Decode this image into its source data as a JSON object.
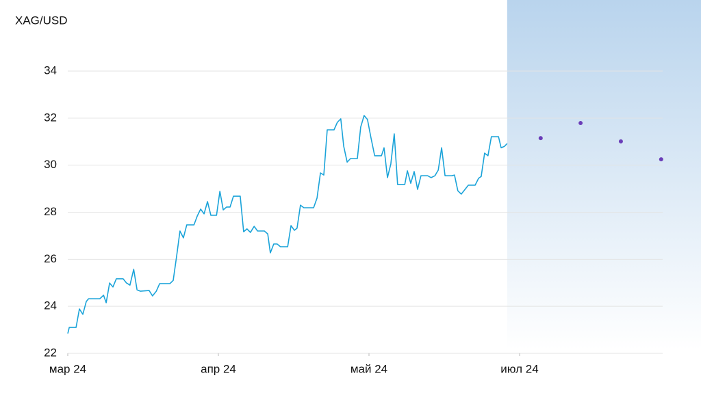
{
  "chart_data": {
    "type": "line",
    "title": "XAG/USD",
    "xlim": [
      0,
      158
    ],
    "xticks": [
      {
        "value": 0,
        "label": "мар 24"
      },
      {
        "value": 40,
        "label": "апр 24"
      },
      {
        "value": 80,
        "label": "май 24"
      },
      {
        "value": 120,
        "label": "июл 24"
      }
    ],
    "ylim": [
      22,
      34
    ],
    "yticks": [
      22,
      24,
      26,
      28,
      30,
      32,
      34
    ],
    "grid": true,
    "series": [
      {
        "color": "#1aa3d9",
        "x": [
          0,
          0.4,
          2.2,
          3.1,
          4.0,
          4.9,
          5.5,
          8.5,
          9.5,
          10.2,
          11.1,
          12.0,
          12.9,
          14.7,
          15.6,
          16.5,
          17.5,
          18.4,
          19.3,
          21.6,
          22.5,
          23.5,
          24.4,
          27.1,
          28.0,
          28.9,
          29.8,
          30.7,
          31.6,
          33.5,
          34.4,
          35.3,
          36.2,
          37.1,
          38.0,
          39.5,
          40.4,
          41.3,
          42.2,
          43.1,
          44.0,
          45.8,
          46.7,
          47.6,
          48.5,
          49.5,
          50.4,
          52.2,
          53.1,
          53.8,
          54.7,
          55.6,
          56.5,
          58.4,
          59.3,
          60.2,
          60.9,
          61.8,
          62.7,
          65.3,
          66.2,
          67.1,
          68.0,
          68.9,
          70.7,
          71.6,
          72.5,
          73.3,
          74.2,
          75.1,
          76.9,
          77.8,
          78.7,
          79.6,
          80.5,
          81.5,
          83.3,
          84.0,
          84.9,
          85.8,
          86.7,
          87.6,
          89.5,
          90.2,
          91.1,
          92.0,
          92.9,
          93.8,
          95.6,
          96.5,
          97.5,
          98.4,
          99.3,
          100.2,
          102.0,
          102.7,
          103.6,
          104.5,
          105.5,
          106.4,
          108.2,
          109.1,
          109.8,
          110.7,
          111.6,
          112.5,
          114.4,
          115.1,
          116.0,
          116.7
        ],
        "values": [
          22.84,
          23.1,
          23.1,
          23.89,
          23.66,
          24.2,
          24.32,
          24.32,
          24.47,
          24.15,
          24.99,
          24.82,
          25.17,
          25.17,
          24.99,
          24.9,
          25.57,
          24.7,
          24.64,
          24.67,
          24.44,
          24.64,
          24.96,
          24.96,
          25.1,
          26.13,
          27.2,
          26.91,
          27.46,
          27.46,
          27.84,
          28.13,
          27.93,
          28.45,
          27.87,
          27.87,
          28.89,
          28.1,
          28.22,
          28.22,
          28.68,
          28.68,
          27.17,
          27.29,
          27.14,
          27.4,
          27.2,
          27.2,
          27.08,
          26.27,
          26.65,
          26.65,
          26.53,
          26.53,
          27.43,
          27.23,
          27.32,
          28.3,
          28.19,
          28.19,
          28.6,
          29.67,
          29.58,
          31.5,
          31.5,
          31.82,
          31.97,
          30.8,
          30.13,
          30.28,
          30.28,
          31.62,
          32.11,
          31.94,
          31.18,
          30.4,
          30.4,
          30.74,
          29.47,
          30.05,
          31.33,
          29.18,
          29.18,
          29.76,
          29.23,
          29.73,
          28.97,
          29.55,
          29.55,
          29.47,
          29.55,
          29.79,
          30.74,
          29.55,
          29.55,
          29.58,
          28.91,
          28.77,
          28.97,
          29.15,
          29.15,
          29.44,
          29.52,
          30.51,
          30.4,
          31.21,
          31.21,
          30.74,
          30.8,
          30.92
        ]
      },
      {
        "color": "#6a3db8",
        "x": [
          125.6,
          136.2,
          146.9,
          157.6
        ],
        "values": [
          31.15,
          31.79,
          31.01,
          30.25
        ]
      }
    ]
  }
}
